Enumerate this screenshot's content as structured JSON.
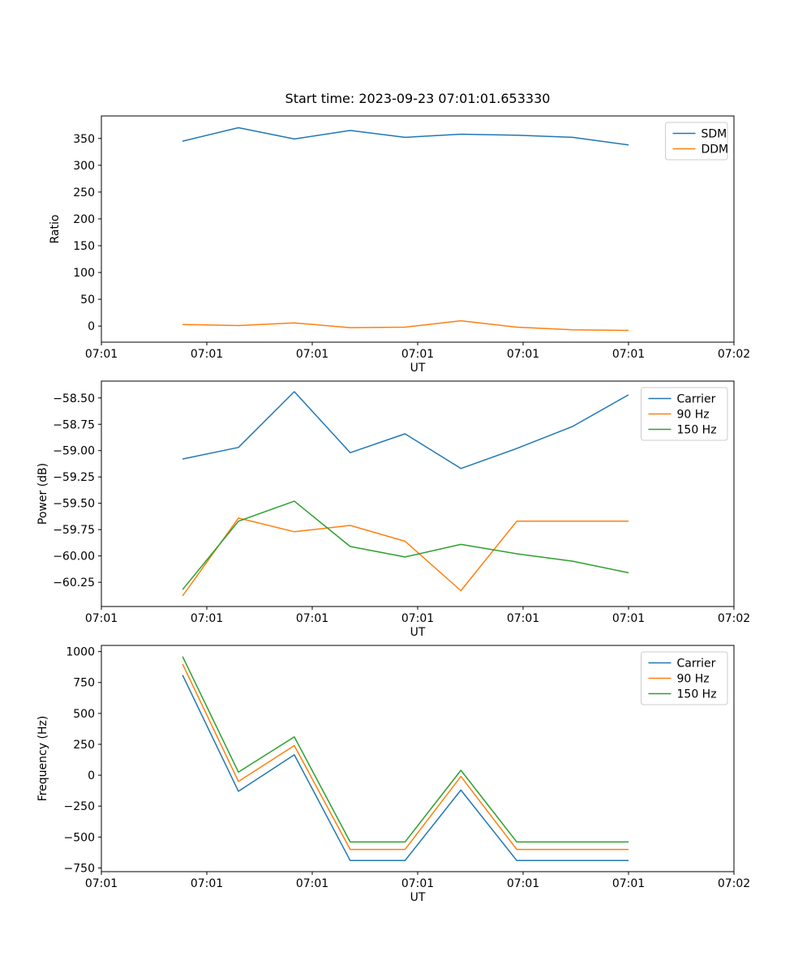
{
  "figure": {
    "title": "Start time: 2023-09-23 07:01:01.653330"
  },
  "chart_data": [
    {
      "name": "ratio-chart",
      "type": "line",
      "xlabel": "UT",
      "ylabel": "Ratio",
      "xlim": [
        0,
        6
      ],
      "ylim": [
        -30,
        392
      ],
      "xtick_values": [
        0,
        1,
        2,
        3,
        4,
        5,
        6
      ],
      "xtick_labels": [
        "07:01",
        "07:01",
        "07:01",
        "07:01",
        "07:01",
        "07:01",
        "07:02"
      ],
      "ytick_values": [
        0,
        50,
        100,
        150,
        200,
        250,
        300,
        350
      ],
      "ytick_labels": [
        "0",
        "50",
        "100",
        "150",
        "200",
        "250",
        "300",
        "350"
      ],
      "x": [
        0.77,
        1.3,
        1.83,
        2.36,
        2.88,
        3.41,
        3.94,
        4.47,
        5.0
      ],
      "series": [
        {
          "name": "SDM",
          "color": "#1f77b4",
          "values": [
            345,
            370,
            349,
            365,
            352,
            358,
            356,
            352,
            338
          ]
        },
        {
          "name": "DDM",
          "color": "#ff7f0e",
          "values": [
            3,
            1,
            6,
            -3,
            -2,
            10,
            -2,
            -7,
            -8
          ]
        }
      ],
      "legend_position": "upper right",
      "grid": false
    },
    {
      "name": "power-chart",
      "type": "line",
      "xlabel": "UT",
      "ylabel": "Power (dB)",
      "xlim": [
        0,
        6
      ],
      "ylim": [
        -60.48,
        -58.34
      ],
      "xtick_values": [
        0,
        1,
        2,
        3,
        4,
        5,
        6
      ],
      "xtick_labels": [
        "07:01",
        "07:01",
        "07:01",
        "07:01",
        "07:01",
        "07:01",
        "07:02"
      ],
      "ytick_values": [
        -60.25,
        -60.0,
        -59.75,
        -59.5,
        -59.25,
        -59.0,
        -58.75,
        -58.5
      ],
      "ytick_labels": [
        "−60.25",
        "−60.00",
        "−59.75",
        "−59.50",
        "−59.25",
        "−59.00",
        "−58.75",
        "−58.50"
      ],
      "x": [
        0.77,
        1.3,
        1.83,
        2.36,
        2.88,
        3.41,
        3.94,
        4.47,
        5.0
      ],
      "series": [
        {
          "name": "Carrier",
          "color": "#1f77b4",
          "values": [
            -59.08,
            -58.97,
            -58.44,
            -59.02,
            -58.84,
            -59.17,
            -58.98,
            -58.77,
            -58.47
          ]
        },
        {
          "name": "90 Hz",
          "color": "#ff7f0e",
          "values": [
            -60.38,
            -59.64,
            -59.77,
            -59.71,
            -59.86,
            -60.33,
            -59.67,
            -59.67,
            -59.67
          ]
        },
        {
          "name": "150 Hz",
          "color": "#2ca02c",
          "values": [
            -60.32,
            -59.67,
            -59.48,
            -59.91,
            -60.01,
            -59.89,
            -59.98,
            -60.05,
            -60.16
          ]
        }
      ],
      "legend_position": "upper right",
      "grid": false
    },
    {
      "name": "frequency-chart",
      "type": "line",
      "xlabel": "UT",
      "ylabel": "Frequency (Hz)",
      "xlim": [
        0,
        6
      ],
      "ylim": [
        -780,
        1050
      ],
      "xtick_values": [
        0,
        1,
        2,
        3,
        4,
        5,
        6
      ],
      "xtick_labels": [
        "07:01",
        "07:01",
        "07:01",
        "07:01",
        "07:01",
        "07:01",
        "07:02"
      ],
      "ytick_values": [
        -750,
        -500,
        -250,
        0,
        250,
        500,
        750,
        1000
      ],
      "ytick_labels": [
        "−750",
        "−500",
        "−250",
        "0",
        "250",
        "500",
        "750",
        "1000"
      ],
      "x": [
        0.77,
        1.3,
        1.83,
        2.36,
        2.88,
        3.41,
        3.94,
        4.47,
        5.0
      ],
      "series": [
        {
          "name": "Carrier",
          "color": "#1f77b4",
          "values": [
            810,
            -130,
            165,
            -690,
            -690,
            -120,
            -690,
            -690,
            -690
          ]
        },
        {
          "name": "90 Hz",
          "color": "#ff7f0e",
          "values": [
            900,
            -50,
            240,
            -600,
            -600,
            -10,
            -600,
            -600,
            -600
          ]
        },
        {
          "name": "150 Hz",
          "color": "#2ca02c",
          "values": [
            960,
            25,
            310,
            -540,
            -540,
            40,
            -540,
            -540,
            -540
          ]
        }
      ],
      "legend_position": "upper right",
      "grid": false
    }
  ]
}
